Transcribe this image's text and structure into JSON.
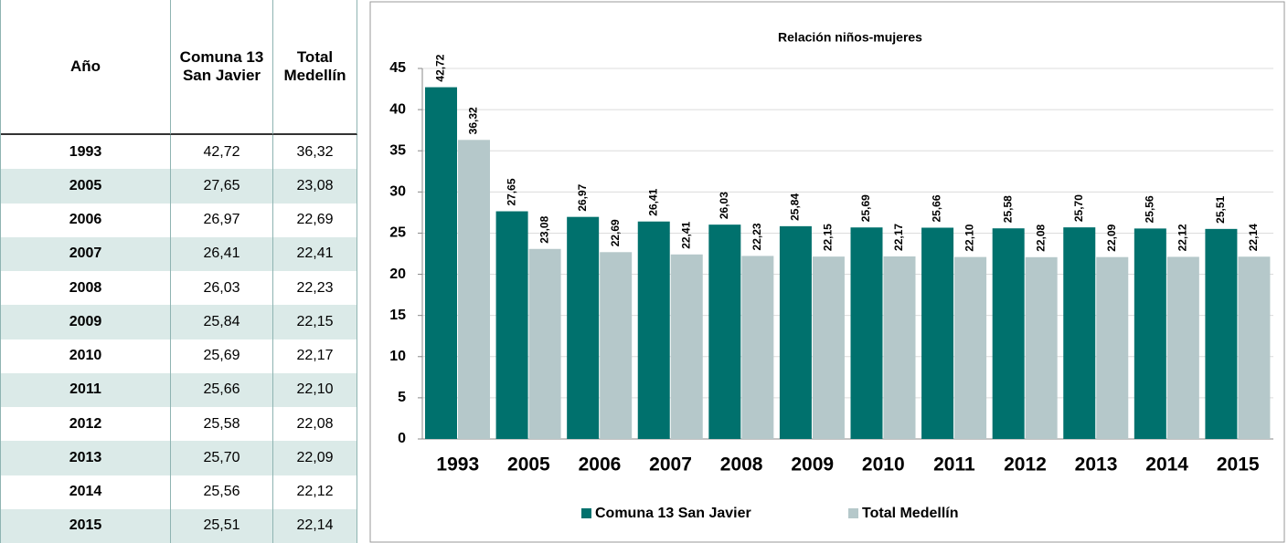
{
  "table": {
    "header": "Año"
  },
  "chart_data": {
    "type": "bar",
    "title": "Relación niños-mujeres",
    "categories": [
      "1993",
      "2005",
      "2006",
      "2007",
      "2008",
      "2009",
      "2010",
      "2011",
      "2012",
      "2013",
      "2014",
      "2015"
    ],
    "series": [
      {
        "name": "Comuna 13 San Javier",
        "color": "#00716d",
        "values": [
          42.72,
          27.65,
          26.97,
          26.41,
          26.03,
          25.84,
          25.69,
          25.66,
          25.58,
          25.7,
          25.56,
          25.51
        ],
        "value_labels": [
          "42,72",
          "27,65",
          "26,97",
          "26,41",
          "26,03",
          "25,84",
          "25,69",
          "25,66",
          "25,58",
          "25,70",
          "25,56",
          "25,51"
        ]
      },
      {
        "name": "Total Medellín",
        "color": "#b5c8ca",
        "values": [
          36.32,
          23.08,
          22.69,
          22.41,
          22.23,
          22.15,
          22.17,
          22.1,
          22.08,
          22.09,
          22.12,
          22.14
        ],
        "value_labels": [
          "36,32",
          "23,08",
          "22,69",
          "22,41",
          "22,23",
          "22,15",
          "22,17",
          "22,10",
          "22,08",
          "22,09",
          "22,12",
          "22,14"
        ]
      }
    ],
    "ylim": [
      0,
      45
    ],
    "yticks": [
      0,
      5,
      10,
      15,
      20,
      25,
      30,
      35,
      40,
      45
    ],
    "grid": true,
    "legend": "bottom"
  }
}
